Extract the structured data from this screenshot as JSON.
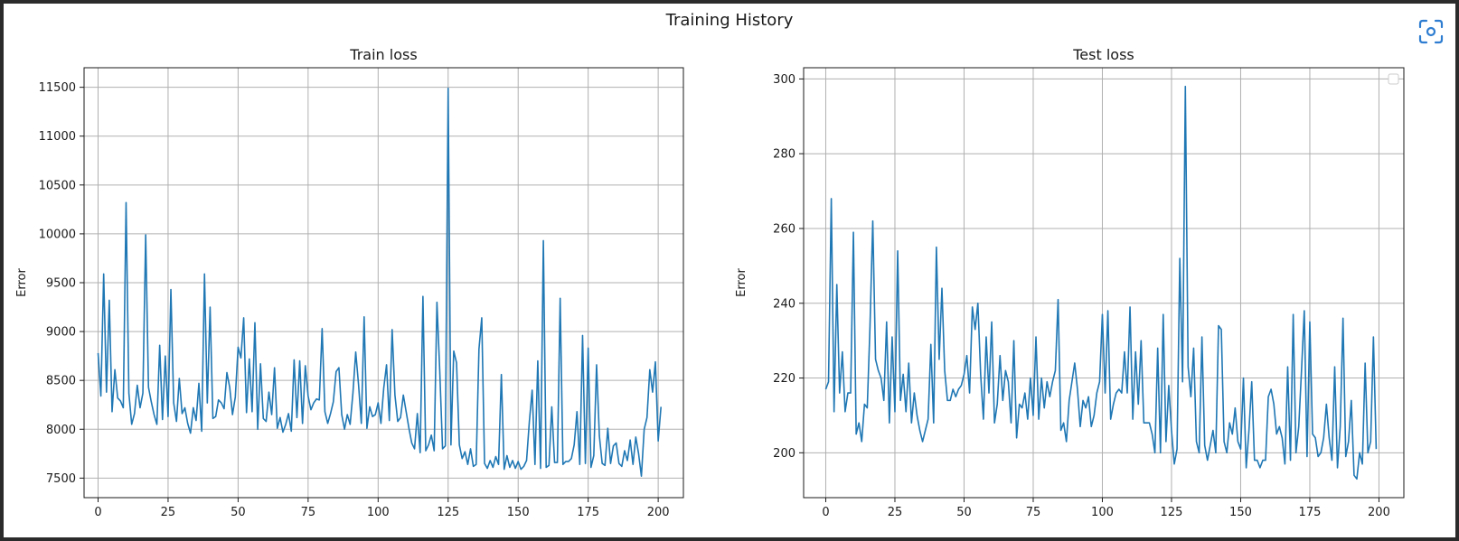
{
  "figure": {
    "title": "Training History",
    "focus_icon": "focus-scan-icon",
    "accent_color": "#2e7dd1",
    "line_color": "#1f77b4"
  },
  "chart_data": [
    {
      "type": "line",
      "title": "Train loss",
      "xlabel": "",
      "ylabel": "Error",
      "xlim": [
        -5,
        209
      ],
      "ylim": [
        7300,
        11700
      ],
      "xticks": [
        0,
        25,
        50,
        75,
        100,
        125,
        150,
        175,
        200
      ],
      "yticks": [
        7500,
        8000,
        8500,
        9000,
        9500,
        10000,
        10500,
        11000,
        11500
      ],
      "grid": true,
      "legend": false,
      "series": [
        {
          "x_start": 0,
          "x_step": 1,
          "values": [
            8780,
            8340,
            9590,
            8380,
            9320,
            8180,
            8610,
            8320,
            8290,
            8220,
            10320,
            8370,
            8050,
            8160,
            8450,
            8220,
            8370,
            9990,
            8430,
            8280,
            8150,
            8050,
            8860,
            8100,
            8750,
            8130,
            9430,
            8270,
            8080,
            8520,
            8160,
            8220,
            8060,
            7960,
            8220,
            8090,
            8470,
            7980,
            9590,
            8270,
            9250,
            8110,
            8130,
            8300,
            8270,
            8210,
            8580,
            8430,
            8150,
            8330,
            8840,
            8730,
            9140,
            8170,
            8720,
            8180,
            9090,
            8000,
            8670,
            8110,
            8080,
            8380,
            8150,
            8630,
            8010,
            8120,
            7970,
            8050,
            8160,
            7980,
            8710,
            8120,
            8700,
            8060,
            8650,
            8340,
            8200,
            8270,
            8310,
            8300,
            9030,
            8180,
            8060,
            8160,
            8280,
            8590,
            8630,
            8150,
            8000,
            8150,
            8050,
            8370,
            8790,
            8460,
            8060,
            9150,
            8010,
            8230,
            8130,
            8150,
            8270,
            8060,
            8420,
            8660,
            8090,
            9020,
            8350,
            8080,
            8120,
            8350,
            8180,
            8010,
            7860,
            7800,
            8160,
            7760,
            9360,
            7780,
            7840,
            7940,
            7780,
            9300,
            8600,
            7800,
            7830,
            11490,
            7840,
            8800,
            8680,
            7840,
            7700,
            7770,
            7640,
            7800,
            7620,
            7640,
            8820,
            9140,
            7650,
            7600,
            7680,
            7610,
            7720,
            7640,
            8560,
            7590,
            7730,
            7610,
            7680,
            7600,
            7670,
            7590,
            7620,
            7680,
            8080,
            8400,
            7640,
            8700,
            7600,
            9930,
            7610,
            7630,
            8230,
            7660,
            7660,
            9340,
            7640,
            7670,
            7670,
            7700,
            7840,
            8180,
            7640,
            8960,
            7650,
            8830,
            7610,
            7730,
            8660,
            7930,
            7650,
            7630,
            8010,
            7650,
            7830,
            7860,
            7650,
            7620,
            7780,
            7680,
            7890,
            7640,
            7920,
            7750,
            7520,
            8000,
            8120,
            8610,
            8380,
            8690,
            7880,
            8230
          ]
        }
      ]
    },
    {
      "type": "line",
      "title": "Test loss",
      "xlabel": "",
      "ylabel": "Error",
      "xlim": [
        -8,
        209
      ],
      "ylim": [
        188,
        303
      ],
      "xticks": [
        0,
        25,
        50,
        75,
        100,
        125,
        150,
        175,
        200
      ],
      "yticks": [
        200,
        220,
        240,
        260,
        280,
        300
      ],
      "grid": true,
      "legend": true,
      "legend_position": "top-right",
      "series": [
        {
          "x_start": 0,
          "x_step": 1,
          "values": [
            217,
            219,
            268,
            211,
            245,
            216,
            227,
            211,
            216,
            216,
            259,
            205,
            208,
            203,
            213,
            212,
            234,
            262,
            225,
            222,
            220,
            214,
            235,
            208,
            231,
            211,
            254,
            214,
            221,
            211,
            224,
            208,
            216,
            210,
            206,
            203,
            206,
            209,
            229,
            208,
            255,
            225,
            244,
            222,
            214,
            214,
            217,
            215,
            217,
            218,
            221,
            226,
            216,
            239,
            233,
            240,
            221,
            209,
            231,
            216,
            235,
            208,
            213,
            226,
            214,
            222,
            219,
            208,
            230,
            204,
            213,
            212,
            216,
            209,
            220,
            210,
            231,
            209,
            220,
            212,
            219,
            215,
            219,
            222,
            241,
            206,
            208,
            203,
            214,
            219,
            224,
            217,
            207,
            214,
            212,
            215,
            207,
            210,
            216,
            219,
            237,
            216,
            238,
            209,
            213,
            216,
            217,
            216,
            227,
            216,
            239,
            209,
            227,
            213,
            230,
            208,
            208,
            208,
            205,
            200,
            228,
            200,
            237,
            203,
            218,
            206,
            197,
            201,
            252,
            219,
            298,
            223,
            215,
            228,
            203,
            200,
            231,
            202,
            198,
            202,
            206,
            200,
            234,
            233,
            203,
            200,
            208,
            205,
            212,
            203,
            201,
            220,
            196,
            206,
            219,
            198,
            198,
            196,
            198,
            198,
            215,
            217,
            213,
            205,
            207,
            204,
            197,
            223,
            198,
            237,
            200,
            207,
            222,
            238,
            199,
            235,
            205,
            204,
            199,
            200,
            204,
            213,
            204,
            198,
            223,
            196,
            207,
            236,
            199,
            203,
            214,
            194,
            193,
            200,
            197,
            224,
            200,
            203,
            231,
            201
          ]
        }
      ]
    }
  ]
}
